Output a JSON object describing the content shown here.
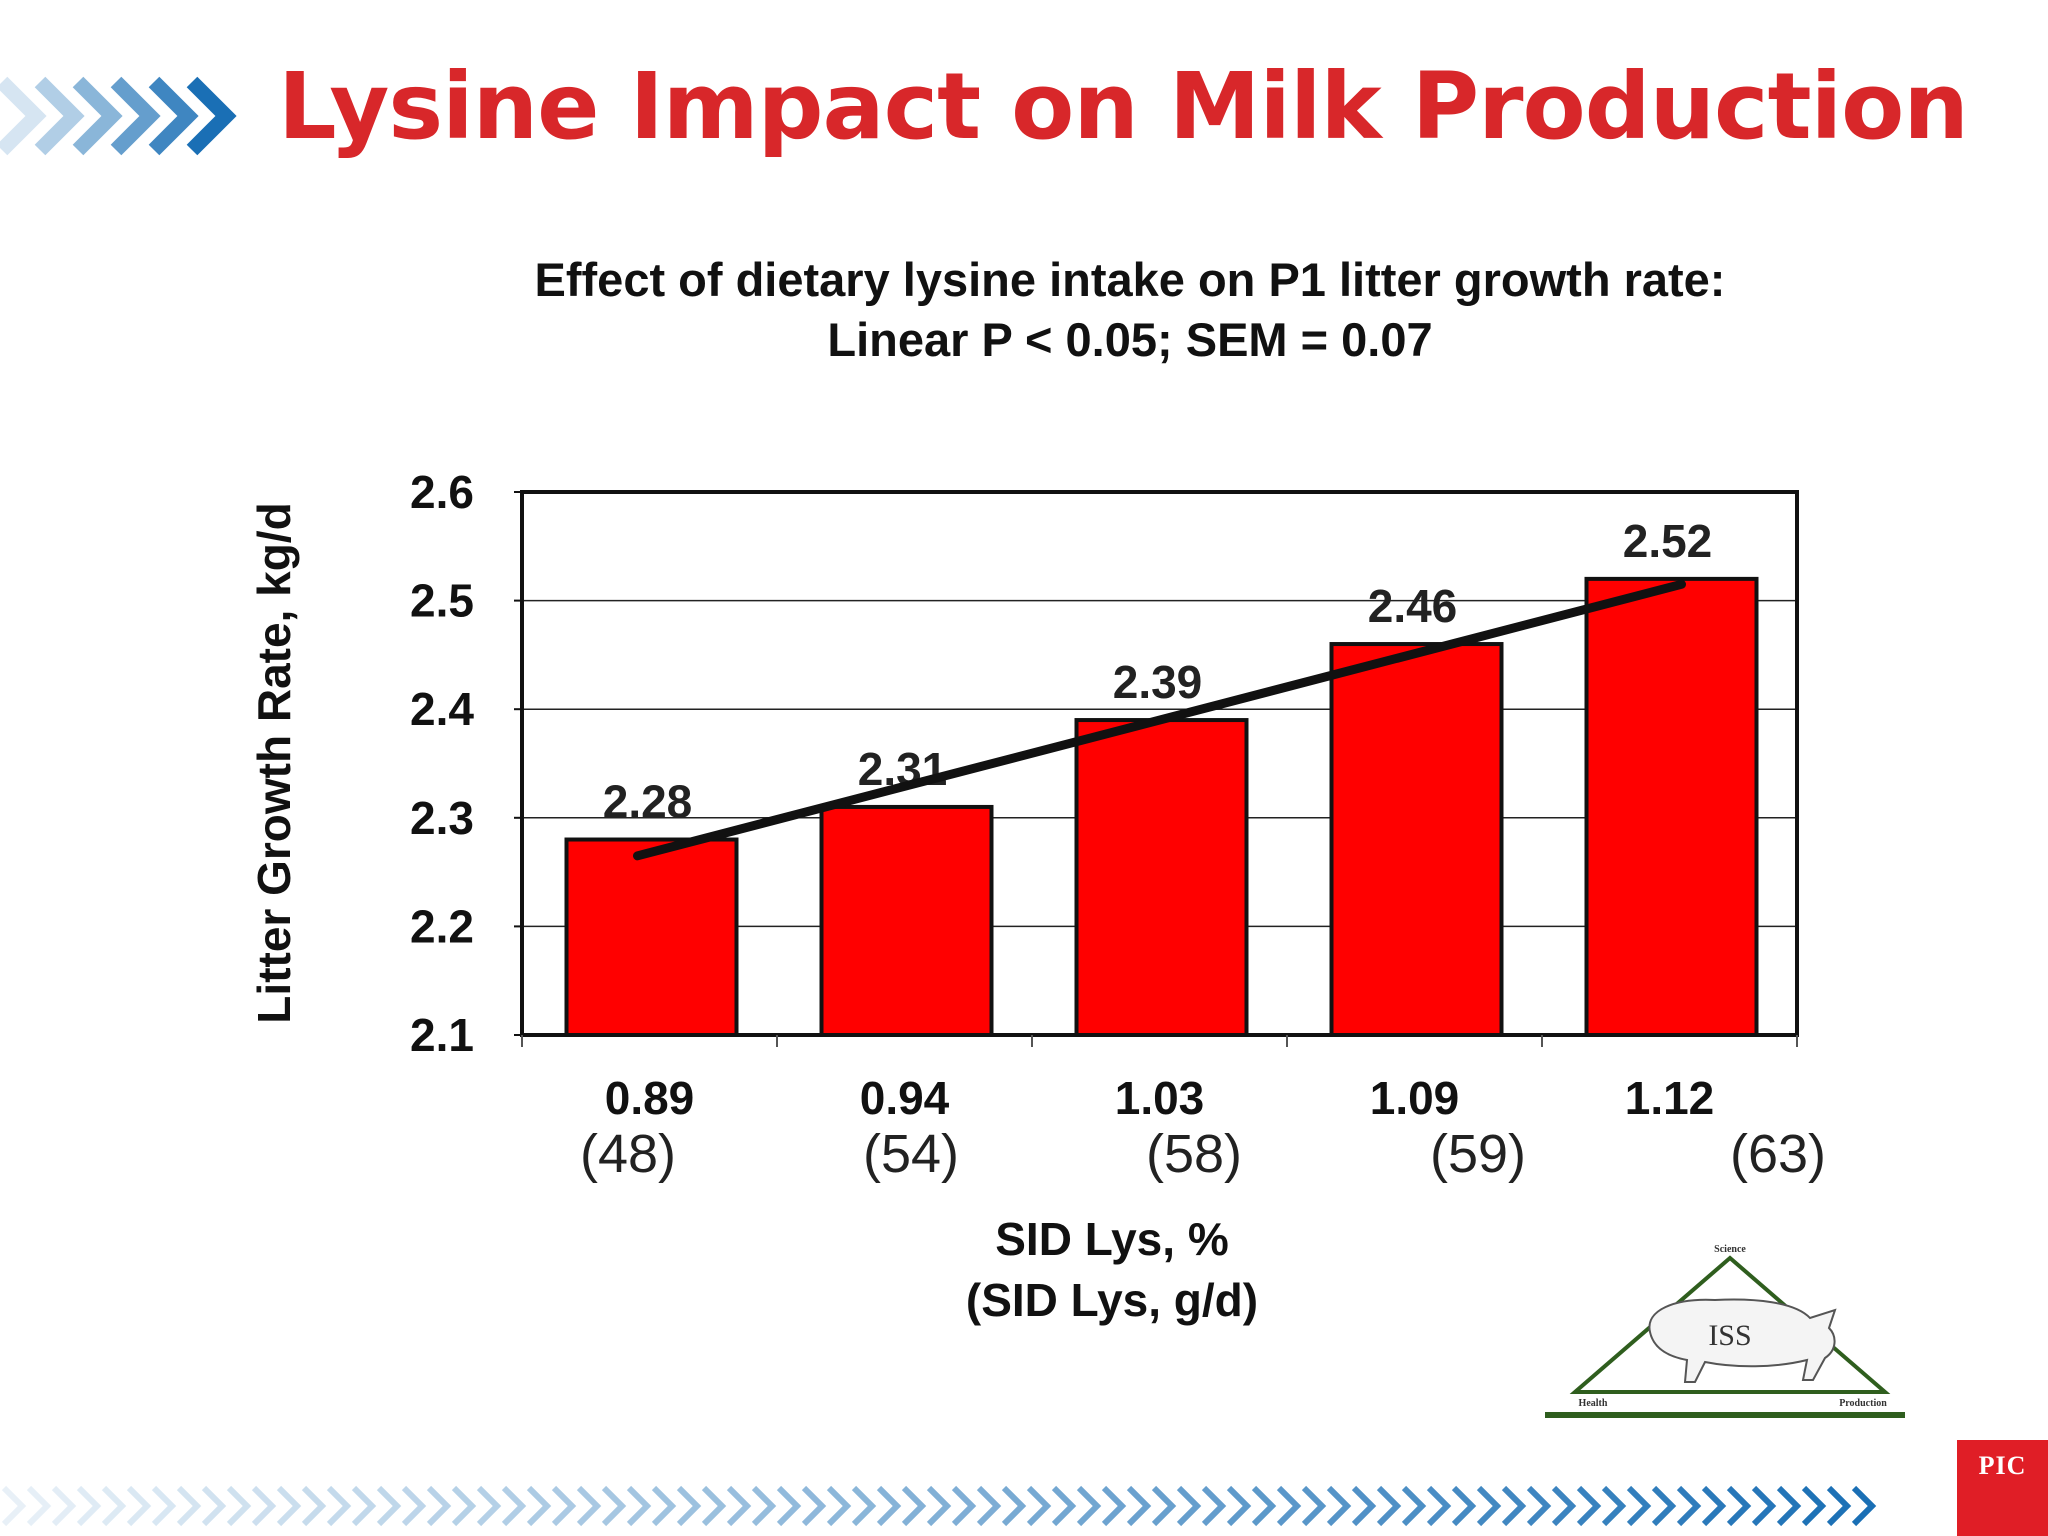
{
  "slide": {
    "title": "Lysine Impact on Milk Production",
    "brand_logo_text": "PIC",
    "accent_color": "#d8272a",
    "arrow_color": "#1a6fb5"
  },
  "chart_data": {
    "type": "bar",
    "title": "Effect of dietary lysine intake on P1 litter growth rate:",
    "subtitle": "Linear P < 0.05; SEM = 0.07",
    "categories": [
      "0.89",
      "0.94",
      "1.03",
      "1.09",
      "1.12"
    ],
    "sublabels": [
      "(48)",
      "(54)",
      "(58)",
      "(59)",
      "(63)"
    ],
    "values": [
      2.28,
      2.31,
      2.39,
      2.46,
      2.52
    ],
    "data_labels": [
      "2.28",
      "2.31",
      "2.39",
      "2.46",
      "2.52"
    ],
    "bar_color": "#ff0000",
    "trendline": {
      "start": 2.265,
      "end": 2.515,
      "color": "#111111"
    },
    "ylabel": "Litter Growth Rate, kg/d",
    "xlabel": "SID Lys, %",
    "xlabel2": "(SID Lys, g/d)",
    "ylim": [
      2.1,
      2.6
    ],
    "yticks": [
      "2.6",
      "2.5",
      "2.4",
      "2.3",
      "2.2",
      "2.1"
    ],
    "grid": true,
    "legend": "none"
  },
  "iss_logo": {
    "center_text": "ISS",
    "top_text": "Science",
    "left_text": "Health",
    "right_text": "Production"
  }
}
